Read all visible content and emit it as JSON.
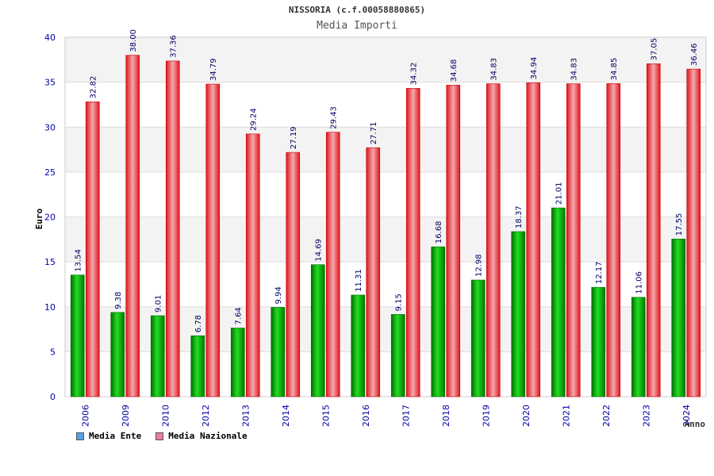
{
  "title": "NISSORIA (c.f.00058880865)",
  "subtitle": "Media Importi",
  "colors": {
    "ente": "#00b000",
    "nazionale": "#e8202a",
    "legend_ente": "#5aa0e8",
    "legend_nazionale": "#e87aa8",
    "axis_text": "#0000aa"
  },
  "chart_data": {
    "type": "bar",
    "xlabel": "Anno",
    "ylabel": "Euro",
    "ylim": [
      0,
      40
    ],
    "yticks": [
      0,
      5,
      10,
      15,
      20,
      25,
      30,
      35,
      40
    ],
    "grid": true,
    "legend_position": "bottom-left",
    "categories": [
      "2006",
      "2009",
      "2010",
      "2012",
      "2013",
      "2014",
      "2015",
      "2016",
      "2017",
      "2018",
      "2019",
      "2020",
      "2021",
      "2022",
      "2023",
      "2024"
    ],
    "series": [
      {
        "name": "Media Ente",
        "values": [
          13.54,
          9.38,
          9.01,
          6.78,
          7.64,
          9.94,
          14.69,
          11.31,
          9.15,
          16.68,
          12.98,
          18.37,
          21.01,
          12.17,
          11.06,
          17.55
        ],
        "labels": [
          "13.54",
          "9.38",
          "9.01",
          "6.78",
          "7.64",
          "9.94",
          "14.69",
          "11.31",
          "9.15",
          "16.68",
          "12.98",
          "18.37",
          "21.01",
          "12.17",
          "11.06",
          "17.55"
        ]
      },
      {
        "name": "Media Nazionale",
        "values": [
          32.82,
          38.0,
          37.36,
          34.79,
          29.24,
          27.19,
          29.43,
          27.71,
          34.32,
          34.68,
          34.83,
          34.94,
          34.83,
          34.85,
          37.05,
          36.46
        ],
        "labels": [
          "32.82",
          "38.00",
          "37.36",
          "34.79",
          "29.24",
          "27.19",
          "29.43",
          "27.71",
          "34.32",
          "34.68",
          "34.83",
          "34.94",
          "34.83",
          "34.85",
          "37.05",
          "36.46"
        ]
      }
    ]
  }
}
